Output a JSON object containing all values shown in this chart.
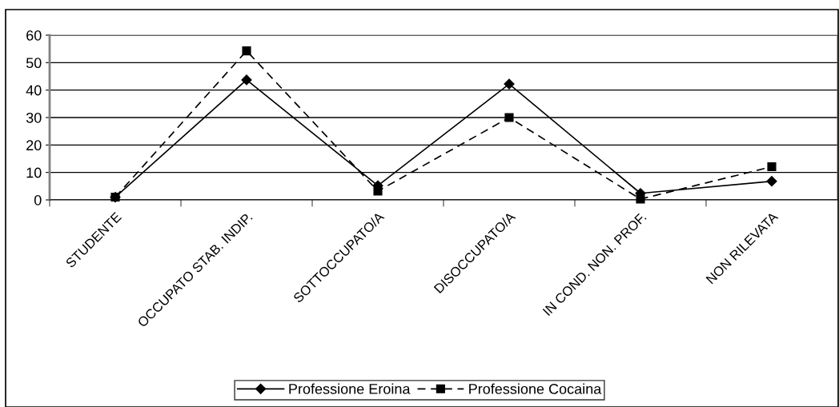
{
  "chart_data": {
    "type": "line",
    "categories": [
      "STUDENTE",
      "OCCUPATO STAB. INDIP.",
      "SOTTOCCUPATO/A",
      "DISOCCUPATO/A",
      "IN COND. NON. PROF.",
      "NON RILEVATA"
    ],
    "series": [
      {
        "name": "Professione Eroina",
        "color": "#000000",
        "values": [
          1,
          43.7,
          5.2,
          42.2,
          2.4,
          6.8
        ],
        "marker": "diamond",
        "line_style": "solid"
      },
      {
        "name": "Professione Cocaina",
        "color": "#000000",
        "values": [
          1,
          54.3,
          3.2,
          30,
          0.3,
          12.1
        ],
        "marker": "square",
        "line_style": "dashed"
      }
    ],
    "ylim": [
      0,
      60
    ],
    "yticks": [
      0,
      10,
      20,
      30,
      40,
      50,
      60
    ],
    "grid": "y",
    "legend": "bottom"
  }
}
